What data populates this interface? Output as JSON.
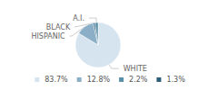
{
  "chart_data": {
    "type": "pie",
    "categories": [
      "WHITE",
      "HISPANIC",
      "BLACK",
      "A.I."
    ],
    "values": [
      83.7,
      12.8,
      1.3,
      2.2
    ],
    "colors": [
      "#d6e4f0",
      "#8bafc7",
      "#2e5f7a",
      "#5a8fa8"
    ],
    "legend_entries": [
      {
        "label": "83.7%",
        "color": "#d6e4f0"
      },
      {
        "label": "12.8%",
        "color": "#8bafc7"
      },
      {
        "label": "2.2%",
        "color": "#5a8fa8"
      },
      {
        "label": "1.3%",
        "color": "#2e5f7a"
      }
    ],
    "legend": "bottom"
  }
}
